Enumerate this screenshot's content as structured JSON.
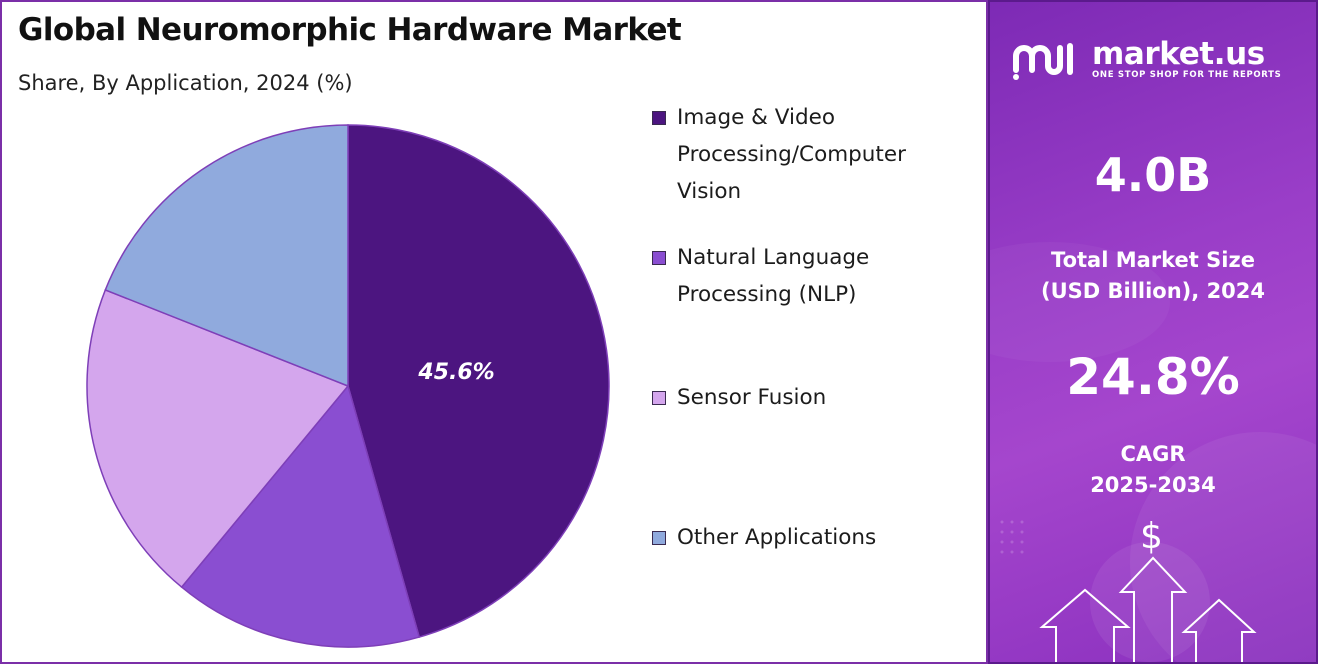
{
  "title": "Global Neuromorphic Hardware Market",
  "subtitle": "Share, By Application, 2024 (%)",
  "chart_data": {
    "type": "pie",
    "categories": [
      "Image & Video Processing/Computer Vision",
      "Natural Language Processing (NLP)",
      "Sensor Fusion",
      "Other Applications"
    ],
    "values": [
      45.6,
      15.4,
      20.0,
      19.0
    ],
    "colors": [
      "#4c1580",
      "#8a4ed1",
      "#d4a6ed",
      "#90aadd"
    ],
    "data_labels": [
      "45.6%",
      "",
      "",
      ""
    ],
    "start_angle": "12 o'clock",
    "direction": "clockwise",
    "legend_position": "right"
  },
  "legend": {
    "items": [
      {
        "lines": [
          "Image & Video",
          "Processing/Computer",
          "Vision"
        ],
        "color": "#4c1580"
      },
      {
        "lines": [
          "Natural Language",
          "Processing (NLP)"
        ],
        "color": "#8a4ed1"
      },
      {
        "lines": [
          "Sensor Fusion"
        ],
        "color": "#d4a6ed"
      },
      {
        "lines": [
          "Other Applications"
        ],
        "color": "#90aadd"
      }
    ]
  },
  "sidebar": {
    "brand_name": "market.us",
    "brand_tagline": "ONE STOP SHOP FOR THE REPORTS",
    "market_size_value": "4.0B",
    "market_size_label_line1": "Total Market Size",
    "market_size_label_line2": "(USD Billion), 2024",
    "cagr_value": "24.8%",
    "cagr_label_line1": "CAGR",
    "cagr_label_line2": "2025-2034",
    "dollar_symbol": "$",
    "icons": [
      "market-us-logo-icon",
      "dollar-icon",
      "up-arrow-icon"
    ]
  }
}
